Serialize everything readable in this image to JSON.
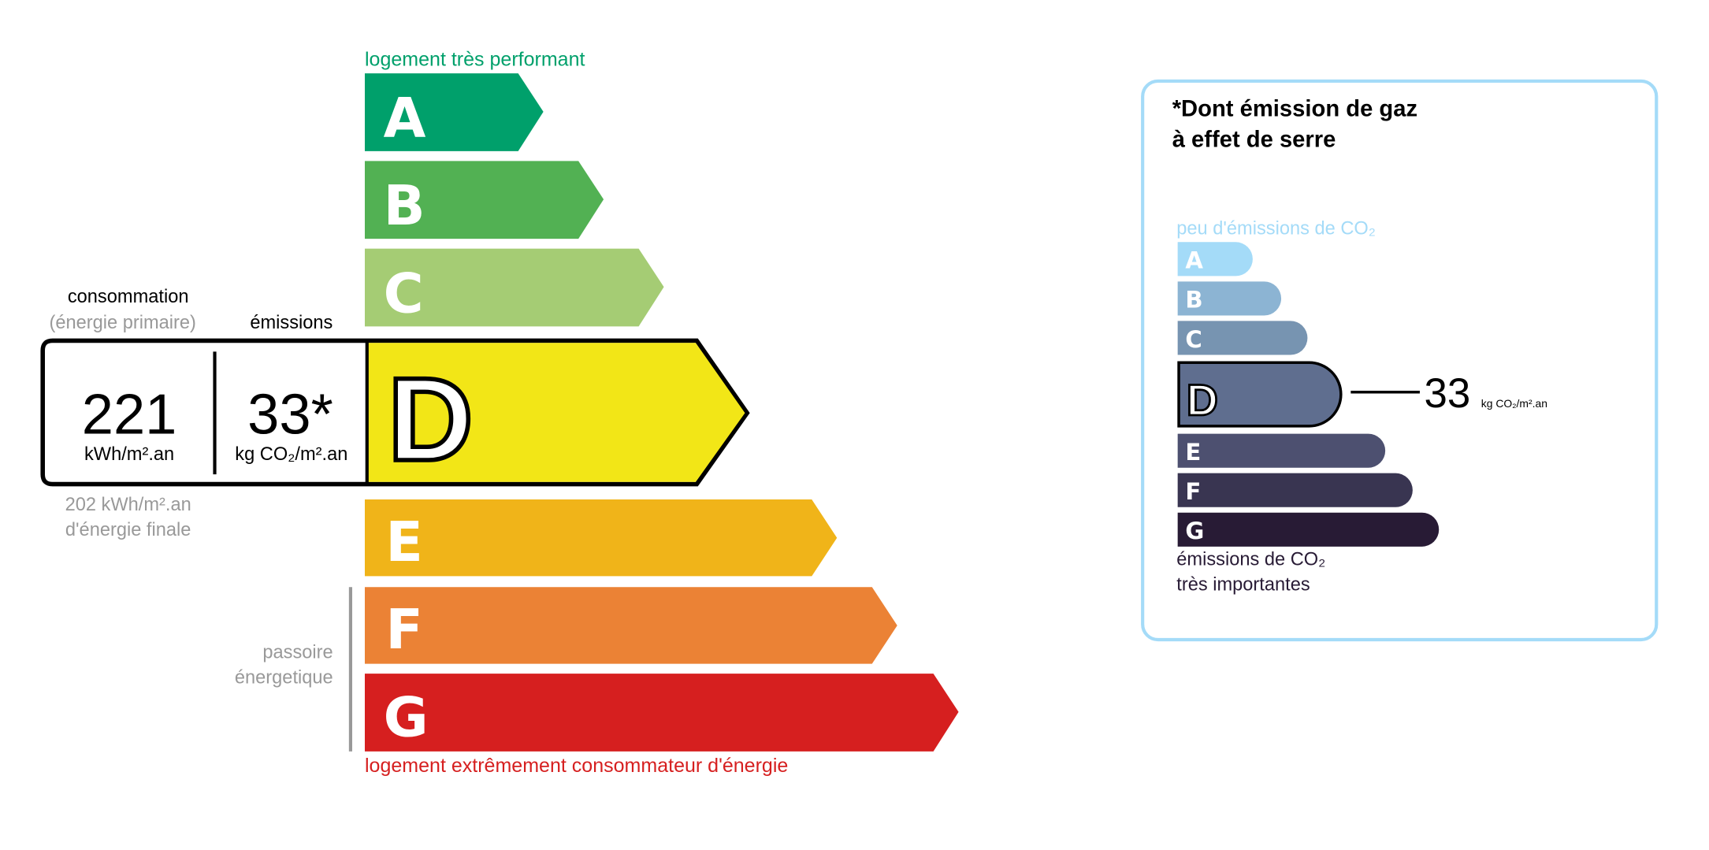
{
  "energy_label": {
    "top_caption": "logement très performant",
    "bottom_caption": "logement extrêmement consommateur d'énergie",
    "classes": [
      {
        "letter": "A",
        "color": "#00a06b"
      },
      {
        "letter": "B",
        "color": "#52b153"
      },
      {
        "letter": "C",
        "color": "#a5cc74"
      },
      {
        "letter": "D",
        "color": "#f2e617"
      },
      {
        "letter": "E",
        "color": "#f0b419"
      },
      {
        "letter": "F",
        "color": "#eb8235"
      },
      {
        "letter": "G",
        "color": "#d61f1f"
      }
    ],
    "current_class": "D",
    "consumption_label": "consommation",
    "consumption_sub": "(énergie primaire)",
    "emissions_label": "émissions",
    "consumption_value": "221",
    "consumption_unit": "kWh/m².an",
    "emissions_value": "33*",
    "emissions_unit": "kg CO₂/m².an",
    "final_energy_line1": "202 kWh/m².an",
    "final_energy_line2": "d'énergie finale",
    "passoire_line1": "passoire",
    "passoire_line2": "énergetique"
  },
  "ghg_panel": {
    "title_line1": "*Dont émission de gaz",
    "title_line2": "à effet de serre",
    "top_caption": "peu d'émissions de CO₂",
    "bottom_caption_line1": "émissions de CO₂",
    "bottom_caption_line2": "très importantes",
    "classes": [
      {
        "letter": "A",
        "color": "#a4dbf8"
      },
      {
        "letter": "B",
        "color": "#8cb4d3"
      },
      {
        "letter": "C",
        "color": "#7794b1"
      },
      {
        "letter": "D",
        "color": "#5f6e8f"
      },
      {
        "letter": "E",
        "color": "#4d5070"
      },
      {
        "letter": "F",
        "color": "#393551"
      },
      {
        "letter": "G",
        "color": "#281b35"
      }
    ],
    "current_class": "D",
    "value": "33",
    "unit": "kg CO₂/m².an",
    "border_color": "#a4dbf8"
  }
}
